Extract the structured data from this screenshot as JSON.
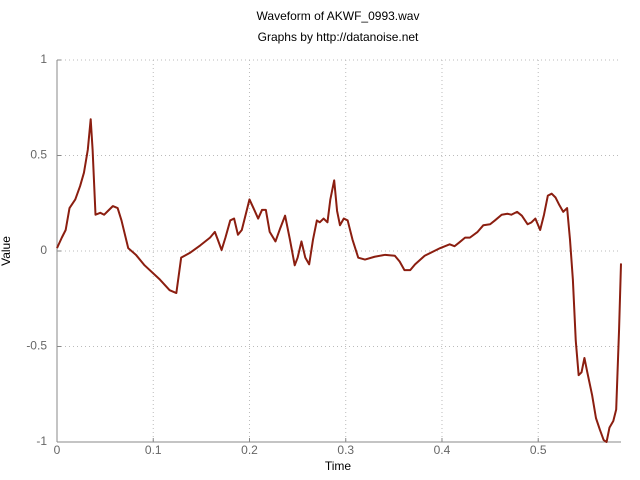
{
  "chart_data": {
    "type": "line",
    "title": "Waveform of AKWF_0993.wav",
    "subtitle": "Graphs by http://datanoise.net",
    "x_label": "Time",
    "y_label": "Value",
    "xlim": [
      0,
      0.586
    ],
    "ylim": [
      -1,
      1
    ],
    "xticks": [
      0,
      0.1,
      0.2,
      0.3,
      0.4,
      0.5
    ],
    "yticks": [
      -1,
      -0.5,
      0,
      0.5,
      1
    ],
    "grid": true,
    "series": [
      {
        "color": "#8b1e10",
        "x": [
          0,
          0.005,
          0.009,
          0.013,
          0.019,
          0.024,
          0.028,
          0.032,
          0.035,
          0.037,
          0.04,
          0.045,
          0.049,
          0.053,
          0.058,
          0.063,
          0.067,
          0.074,
          0.082,
          0.091,
          0.107,
          0.117,
          0.124,
          0.129,
          0.138,
          0.149,
          0.159,
          0.164,
          0.167,
          0.171,
          0.175,
          0.18,
          0.184,
          0.188,
          0.192,
          0.196,
          0.2,
          0.205,
          0.209,
          0.213,
          0.217,
          0.221,
          0.227,
          0.232,
          0.237,
          0.242,
          0.247,
          0.25,
          0.254,
          0.258,
          0.262,
          0.266,
          0.27,
          0.273,
          0.277,
          0.281,
          0.284,
          0.288,
          0.291,
          0.294,
          0.298,
          0.302,
          0.307,
          0.313,
          0.32,
          0.33,
          0.341,
          0.351,
          0.356,
          0.361,
          0.367,
          0.372,
          0.382,
          0.398,
          0.408,
          0.413,
          0.418,
          0.424,
          0.429,
          0.437,
          0.443,
          0.45,
          0.455,
          0.462,
          0.468,
          0.472,
          0.478,
          0.483,
          0.489,
          0.493,
          0.497,
          0.502,
          0.506,
          0.51,
          0.514,
          0.518,
          0.522,
          0.526,
          0.53,
          0.533,
          0.536,
          0.539,
          0.542,
          0.545,
          0.548,
          0.551,
          0.556,
          0.56,
          0.564,
          0.568,
          0.571,
          0.574,
          0.578,
          0.581,
          0.584,
          0.586
        ],
        "values": [
          0.015,
          0.07,
          0.11,
          0.225,
          0.27,
          0.34,
          0.41,
          0.53,
          0.69,
          0.53,
          0.19,
          0.2,
          0.19,
          0.21,
          0.235,
          0.225,
          0.16,
          0.015,
          -0.02,
          -0.075,
          -0.15,
          -0.205,
          -0.22,
          -0.035,
          -0.01,
          0.03,
          0.07,
          0.1,
          0.06,
          0.005,
          0.07,
          0.16,
          0.17,
          0.085,
          0.11,
          0.19,
          0.27,
          0.215,
          0.17,
          0.215,
          0.215,
          0.1,
          0.05,
          0.12,
          0.185,
          0.06,
          -0.075,
          -0.035,
          0.05,
          -0.035,
          -0.07,
          0.06,
          0.16,
          0.15,
          0.17,
          0.15,
          0.27,
          0.37,
          0.21,
          0.135,
          0.17,
          0.16,
          0.06,
          -0.035,
          -0.045,
          -0.03,
          -0.02,
          -0.025,
          -0.055,
          -0.1,
          -0.1,
          -0.07,
          -0.025,
          0.015,
          0.035,
          0.025,
          0.045,
          0.07,
          0.07,
          0.1,
          0.135,
          0.14,
          0.16,
          0.19,
          0.195,
          0.19,
          0.205,
          0.185,
          0.14,
          0.15,
          0.17,
          0.11,
          0.19,
          0.29,
          0.3,
          0.28,
          0.24,
          0.205,
          0.225,
          0.06,
          -0.15,
          -0.47,
          -0.65,
          -0.635,
          -0.56,
          -0.635,
          -0.755,
          -0.875,
          -0.935,
          -0.99,
          -1.0,
          -0.925,
          -0.89,
          -0.83,
          -0.41,
          -0.065
        ]
      }
    ]
  }
}
